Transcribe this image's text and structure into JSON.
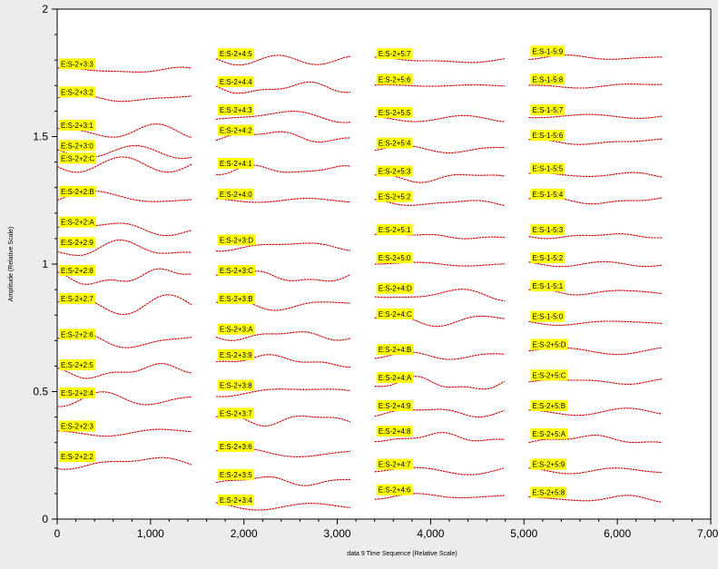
{
  "chart_data": {
    "type": "line",
    "title": "",
    "xlabel": "data 9 Time Sequence (Relative Scale)",
    "ylabel": "Amplitude (Relative Scale)",
    "xlim": [
      0,
      7000
    ],
    "ylim": [
      0,
      2
    ],
    "x_ticks": [
      0,
      1000,
      2000,
      3000,
      4000,
      5000,
      6000,
      7000
    ],
    "x_tick_labels": [
      "0",
      "1,000",
      "2,000",
      "3,000",
      "4,000",
      "5,000",
      "6,000",
      "7,000"
    ],
    "y_ticks": [
      0,
      0.5,
      1,
      1.5,
      2
    ],
    "y_tick_labels": [
      "0",
      "0.5",
      "1",
      "1.5",
      "2"
    ],
    "grid": false,
    "label_background": "#ffff00",
    "line_color": "#cc0000",
    "background": "#ffffff",
    "columns": [
      {
        "x_range": [
          0,
          1450
        ],
        "traces": [
          {
            "label": "E:S-2+3:3",
            "baseline": 1.76,
            "amp": 0.012
          },
          {
            "label": "E:S-2+3:2",
            "baseline": 1.65,
            "amp": 0.015
          },
          {
            "label": "E:S-2+3:1",
            "baseline": 1.52,
            "amp": 0.03
          },
          {
            "label": "E:S-2+3:0",
            "baseline": 1.44,
            "amp": 0.03
          },
          {
            "label": "E:S-2+2:C",
            "baseline": 1.39,
            "amp": 0.03
          },
          {
            "label": "E:S-2+2:B",
            "baseline": 1.26,
            "amp": 0.03
          },
          {
            "label": "E:S-2+2:A",
            "baseline": 1.14,
            "amp": 0.03
          },
          {
            "label": "E:S-2+2:9",
            "baseline": 1.06,
            "amp": 0.035
          },
          {
            "label": "E:S-2+2:8",
            "baseline": 0.95,
            "amp": 0.035
          },
          {
            "label": "E:S-2+2:7",
            "baseline": 0.84,
            "amp": 0.04
          },
          {
            "label": "E:S-2+2:6",
            "baseline": 0.7,
            "amp": 0.035
          },
          {
            "label": "E:S-2+2:5",
            "baseline": 0.58,
            "amp": 0.03
          },
          {
            "label": "E:S-2+2:4",
            "baseline": 0.47,
            "amp": 0.03
          },
          {
            "label": "E:S-2+2:3",
            "baseline": 0.34,
            "amp": 0.015
          },
          {
            "label": "E:S-2+2:2",
            "baseline": 0.22,
            "amp": 0.025
          }
        ]
      },
      {
        "x_range": [
          1700,
          3150
        ],
        "traces": [
          {
            "label": "E:S-2+4:5",
            "baseline": 1.8,
            "amp": 0.02
          },
          {
            "label": "E:S-2+4:4",
            "baseline": 1.69,
            "amp": 0.025
          },
          {
            "label": "E:S-2+4:3",
            "baseline": 1.58,
            "amp": 0.025
          },
          {
            "label": "E:S-2+4:2",
            "baseline": 1.5,
            "amp": 0.025
          },
          {
            "label": "E:S-2+4:1",
            "baseline": 1.37,
            "amp": 0.02
          },
          {
            "label": "E:S-2+4:0",
            "baseline": 1.25,
            "amp": 0.008
          },
          {
            "label": "E:S-2+3:D",
            "baseline": 1.07,
            "amp": 0.02
          },
          {
            "label": "E:S-2+3:C",
            "baseline": 0.95,
            "amp": 0.025
          },
          {
            "label": "E:S-2+3:B",
            "baseline": 0.84,
            "amp": 0.025
          },
          {
            "label": "E:S-2+3:A",
            "baseline": 0.72,
            "amp": 0.02
          },
          {
            "label": "E:S-2+3:9",
            "baseline": 0.62,
            "amp": 0.025
          },
          {
            "label": "E:S-2+3:8",
            "baseline": 0.5,
            "amp": 0.02
          },
          {
            "label": "E:S-2+3:7",
            "baseline": 0.39,
            "amp": 0.025
          },
          {
            "label": "E:S-2+3:6",
            "baseline": 0.26,
            "amp": 0.02
          },
          {
            "label": "E:S-2+3:5",
            "baseline": 0.15,
            "amp": 0.02
          },
          {
            "label": "E:S-2+3:4",
            "baseline": 0.05,
            "amp": 0.02
          }
        ]
      },
      {
        "x_range": [
          3400,
          4800
        ],
        "traces": [
          {
            "label": "E:S-2+5:7",
            "baseline": 1.8,
            "amp": 0.012
          },
          {
            "label": "E:S-2+5:6",
            "baseline": 1.7,
            "amp": 0.003
          },
          {
            "label": "E:S-2+5:5",
            "baseline": 1.57,
            "amp": 0.015
          },
          {
            "label": "E:S-2+5:4",
            "baseline": 1.45,
            "amp": 0.015
          },
          {
            "label": "E:S-2+5:3",
            "baseline": 1.34,
            "amp": 0.02
          },
          {
            "label": "E:S-2+5:2",
            "baseline": 1.24,
            "amp": 0.015
          },
          {
            "label": "E:S-2+5:1",
            "baseline": 1.11,
            "amp": 0.012
          },
          {
            "label": "E:S-2+5:0",
            "baseline": 1.0,
            "amp": 0.008
          },
          {
            "label": "E:S-2+4:D",
            "baseline": 0.88,
            "amp": 0.025
          },
          {
            "label": "E:S-2+4:C",
            "baseline": 0.78,
            "amp": 0.025
          },
          {
            "label": "E:S-2+4:B",
            "baseline": 0.64,
            "amp": 0.015
          },
          {
            "label": "E:S-2+4:A",
            "baseline": 0.53,
            "amp": 0.03
          },
          {
            "label": "E:S-2+4:9",
            "baseline": 0.42,
            "amp": 0.02
          },
          {
            "label": "E:S-2+4:8",
            "baseline": 0.32,
            "amp": 0.02
          },
          {
            "label": "E:S-2+4:7",
            "baseline": 0.19,
            "amp": 0.02
          },
          {
            "label": "E:S-2+4:6",
            "baseline": 0.09,
            "amp": 0.012
          }
        ]
      },
      {
        "x_range": [
          5050,
          6480
        ],
        "traces": [
          {
            "label": "E:S-1-5:9",
            "baseline": 1.81,
            "amp": 0.01
          },
          {
            "label": "E:S-1-5:8",
            "baseline": 1.7,
            "amp": 0.01
          },
          {
            "label": "E:S-1-5:7",
            "baseline": 1.58,
            "amp": 0.015
          },
          {
            "label": "E:S-1-5:6",
            "baseline": 1.48,
            "amp": 0.012
          },
          {
            "label": "E:S-1-5:5",
            "baseline": 1.35,
            "amp": 0.015
          },
          {
            "label": "E:S-1-5:4",
            "baseline": 1.25,
            "amp": 0.015
          },
          {
            "label": "E:S-1-5:3",
            "baseline": 1.11,
            "amp": 0.01
          },
          {
            "label": "E:S-1-5:2",
            "baseline": 1.0,
            "amp": 0.01
          },
          {
            "label": "E:S-1-5:1",
            "baseline": 0.89,
            "amp": 0.015
          },
          {
            "label": "E:S-1-5:0",
            "baseline": 0.77,
            "amp": 0.012
          },
          {
            "label": "E:S-2+5:D",
            "baseline": 0.66,
            "amp": 0.015
          },
          {
            "label": "E:S-2+5:C",
            "baseline": 0.54,
            "amp": 0.012
          },
          {
            "label": "E:S-2+5:B",
            "baseline": 0.42,
            "amp": 0.015
          },
          {
            "label": "E:S-2+5:A",
            "baseline": 0.31,
            "amp": 0.02
          },
          {
            "label": "E:S-2+5:9",
            "baseline": 0.19,
            "amp": 0.012
          },
          {
            "label": "E:S-2+5:8",
            "baseline": 0.08,
            "amp": 0.015
          }
        ]
      }
    ]
  }
}
